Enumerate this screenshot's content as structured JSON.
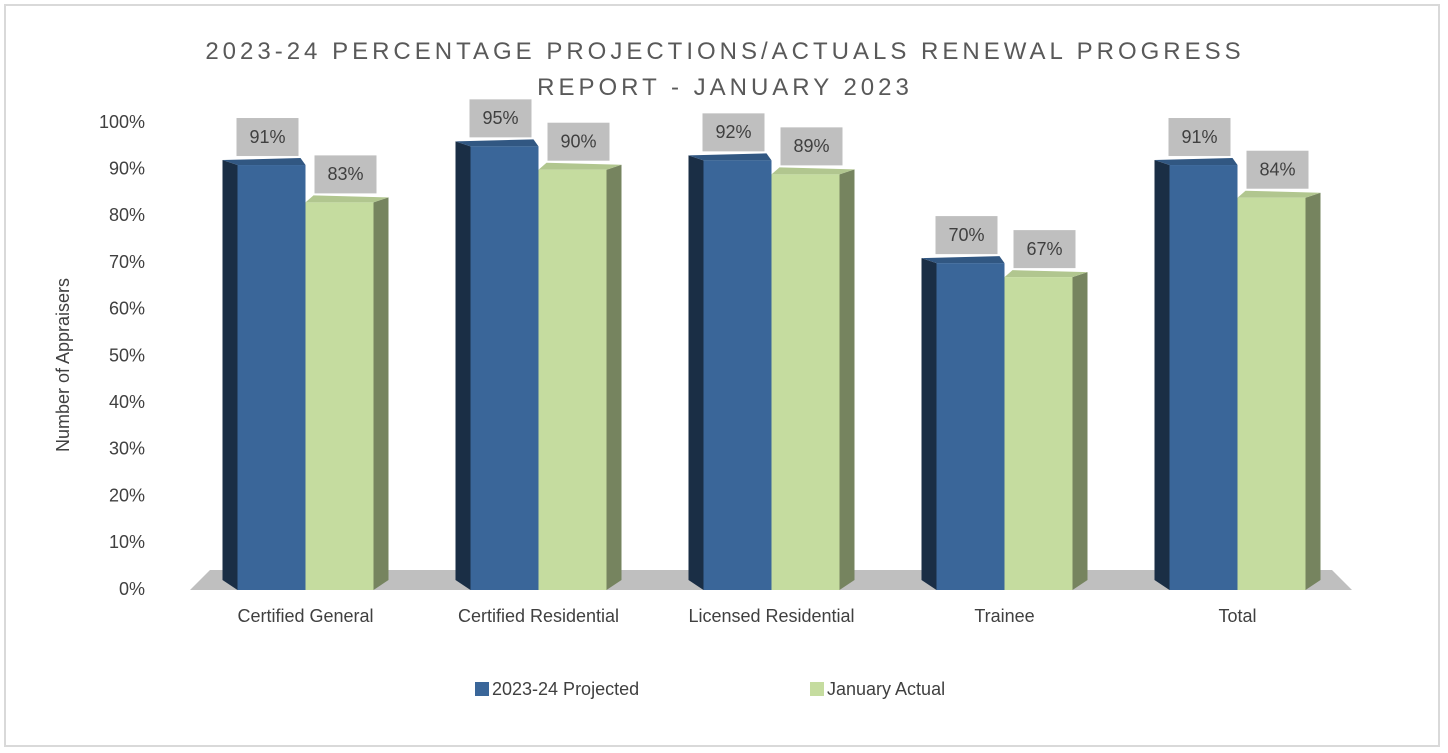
{
  "chart_data": {
    "type": "bar3d",
    "title": "2023-24 PERCENTAGE PROJECTIONS/ACTUALS RENEWAL PROGRESS REPORT - JANUARY 2023",
    "y_axis_label": "Number of Appraisers",
    "categories": [
      "Certified General",
      "Certified Residential",
      "Licensed Residential",
      "Trainee",
      "Total"
    ],
    "series": [
      {
        "name": "2023-24 Projected",
        "color": "#3a6699",
        "values": [
          91,
          95,
          92,
          70,
          91
        ],
        "value_labels": [
          "91%",
          "95%",
          "92%",
          "70%",
          "91%"
        ]
      },
      {
        "name": "January Actual",
        "color": "#c5dc9f",
        "values": [
          83,
          90,
          89,
          67,
          84
        ],
        "value_labels": [
          "83%",
          "90%",
          "89%",
          "67%",
          "84%"
        ]
      }
    ],
    "ylim": [
      0,
      100
    ],
    "yticks": [
      {
        "value": 0,
        "label": "0%"
      },
      {
        "value": 10,
        "label": "10%"
      },
      {
        "value": 20,
        "label": "20%"
      },
      {
        "value": 30,
        "label": "30%"
      },
      {
        "value": 40,
        "label": "40%"
      },
      {
        "value": 50,
        "label": "50%"
      },
      {
        "value": 60,
        "label": "60%"
      },
      {
        "value": 70,
        "label": "70%"
      },
      {
        "value": 80,
        "label": "80%"
      },
      {
        "value": 90,
        "label": "90%"
      },
      {
        "value": 100,
        "label": "100%"
      }
    ],
    "legend": "bottom"
  }
}
